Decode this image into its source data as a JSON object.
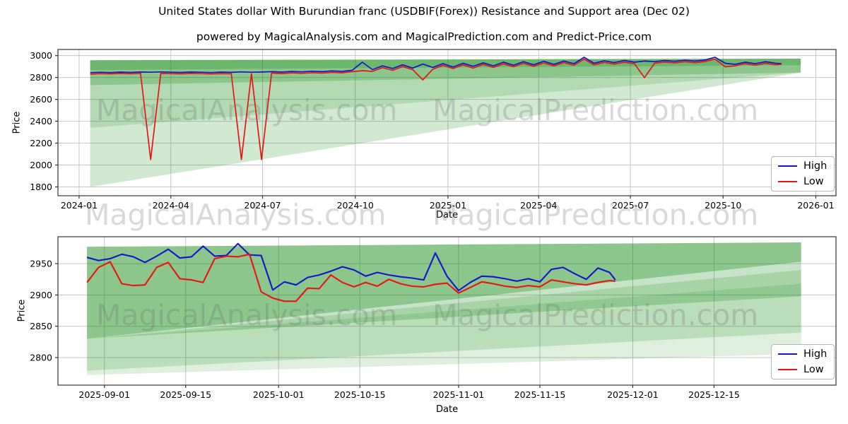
{
  "title": "United States dollar With Burundian franc (USDBIF(Forex)) Resistance and Support area (Dec 02)",
  "subtitle": "powered by MagicalAnalysis.com and MagicalPrediction.com and Predict-Price.com",
  "watermark": {
    "left": "MagicalAnalysis.com",
    "right": "MagicalPrediction.com"
  },
  "legend": {
    "high": "High",
    "low": "Low"
  },
  "colors": {
    "high": "#1414cc",
    "low": "#e81414",
    "band": "#008000",
    "grid": "#c6c6c6",
    "spine": "#333333",
    "tick_text": "#000000"
  },
  "chart_data": [
    {
      "type": "line",
      "name": "full-history",
      "xlabel": "Date",
      "ylabel": "Price",
      "x_domain": [
        "2023-12-11",
        "2026-01-21"
      ],
      "y_domain": [
        1719,
        3056
      ],
      "x_ticks": [
        {
          "label": "2024-01",
          "date": "2024-01-01"
        },
        {
          "label": "2024-04",
          "date": "2024-04-01"
        },
        {
          "label": "2024-07",
          "date": "2024-07-01"
        },
        {
          "label": "2024-10",
          "date": "2024-10-01"
        },
        {
          "label": "2025-01",
          "date": "2025-01-01"
        },
        {
          "label": "2025-04",
          "date": "2025-04-01"
        },
        {
          "label": "2025-07",
          "date": "2025-07-01"
        },
        {
          "label": "2025-10",
          "date": "2025-10-01"
        },
        {
          "label": "2026-01",
          "date": "2026-01-01"
        }
      ],
      "y_ticks": [
        1800,
        2000,
        2200,
        2400,
        2600,
        2800,
        3000
      ],
      "grid": true,
      "legend_position": "lower right",
      "dates": [
        "2024-01-12",
        "2024-01-22",
        "2024-02-01",
        "2024-02-11",
        "2024-02-21",
        "2024-03-02",
        "2024-03-12",
        "2024-03-22",
        "2024-04-01",
        "2024-04-11",
        "2024-04-21",
        "2024-05-01",
        "2024-05-11",
        "2024-05-21",
        "2024-05-31",
        "2024-06-10",
        "2024-06-20",
        "2024-06-30",
        "2024-07-10",
        "2024-07-20",
        "2024-07-30",
        "2024-08-09",
        "2024-08-19",
        "2024-08-29",
        "2024-09-08",
        "2024-09-18",
        "2024-09-28",
        "2024-10-08",
        "2024-10-18",
        "2024-10-28",
        "2024-11-07",
        "2024-11-17",
        "2024-11-27",
        "2024-12-07",
        "2024-12-17",
        "2024-12-27",
        "2025-01-06",
        "2025-01-16",
        "2025-01-26",
        "2025-02-05",
        "2025-02-15",
        "2025-02-25",
        "2025-03-07",
        "2025-03-17",
        "2025-03-27",
        "2025-04-06",
        "2025-04-16",
        "2025-04-26",
        "2025-05-06",
        "2025-05-16",
        "2025-05-26",
        "2025-06-05",
        "2025-06-15",
        "2025-06-25",
        "2025-07-05",
        "2025-07-15",
        "2025-07-25",
        "2025-08-04",
        "2025-08-14",
        "2025-08-24",
        "2025-09-03",
        "2025-09-13",
        "2025-09-23",
        "2025-10-03",
        "2025-10-13",
        "2025-10-23",
        "2025-11-02",
        "2025-11-12",
        "2025-11-22",
        "2025-11-28"
      ],
      "series": [
        {
          "name": "High",
          "color_key": "high",
          "values": [
            2844,
            2848,
            2845,
            2849,
            2846,
            2850,
            2848,
            2851,
            2848,
            2846,
            2850,
            2848,
            2845,
            2849,
            2847,
            2851,
            2848,
            2850,
            2853,
            2849,
            2855,
            2851,
            2857,
            2853,
            2860,
            2856,
            2866,
            2940,
            2872,
            2906,
            2882,
            2916,
            2886,
            2922,
            2892,
            2926,
            2896,
            2930,
            2902,
            2934,
            2906,
            2940,
            2912,
            2944,
            2916,
            2948,
            2920,
            2950,
            2926,
            2985,
            2930,
            2952,
            2936,
            2955,
            2940,
            2950,
            2944,
            2955,
            2948,
            2958,
            2950,
            2960,
            2985,
            2930,
            2920,
            2940,
            2926,
            2944,
            2930,
            2926
          ]
        },
        {
          "name": "Low",
          "color_key": "low",
          "values": [
            2830,
            2836,
            2833,
            2837,
            2834,
            2838,
            2050,
            2837,
            2835,
            2833,
            2837,
            2835,
            2832,
            2836,
            2834,
            2050,
            2836,
            2050,
            2840,
            2836,
            2842,
            2838,
            2844,
            2840,
            2847,
            2843,
            2853,
            2862,
            2856,
            2890,
            2866,
            2900,
            2872,
            2778,
            2876,
            2910,
            2882,
            2915,
            2886,
            2920,
            2892,
            2925,
            2898,
            2930,
            2902,
            2933,
            2906,
            2936,
            2912,
            2968,
            2916,
            2938,
            2922,
            2940,
            2926,
            2798,
            2930,
            2941,
            2934,
            2944,
            2936,
            2946,
            2968,
            2898,
            2906,
            2926,
            2912,
            2930,
            2916,
            2921
          ]
        }
      ],
      "bands": [
        {
          "opacity": 0.18,
          "points": [
            [
              "2024-01-12",
              2340
            ],
            [
              "2024-01-12",
              1800
            ],
            [
              "2025-12-17",
              2845
            ]
          ]
        },
        {
          "opacity": 0.3,
          "points": [
            [
              "2024-01-12",
              2730
            ],
            [
              "2024-01-12",
              2340
            ],
            [
              "2025-12-17",
              2845
            ]
          ]
        },
        {
          "opacity": 0.45,
          "points": [
            [
              "2024-01-12",
              2958
            ],
            [
              "2025-12-17",
              2972
            ],
            [
              "2025-12-17",
              2845
            ],
            [
              "2024-01-12",
              2730
            ]
          ]
        },
        {
          "opacity": 0.22,
          "points": [
            [
              "2024-01-12",
              2958
            ],
            [
              "2025-12-17",
              2972
            ],
            [
              "2025-12-17",
              2912
            ],
            [
              "2024-01-12",
              2868
            ]
          ]
        }
      ]
    },
    {
      "type": "line",
      "name": "recent-zoom",
      "xlabel": "Date",
      "ylabel": "Price",
      "x_domain": [
        "2025-08-24",
        "2026-01-05"
      ],
      "y_domain": [
        2756,
        2993
      ],
      "x_ticks": [
        {
          "label": "2025-09-01",
          "date": "2025-09-01"
        },
        {
          "label": "2025-09-15",
          "date": "2025-09-15"
        },
        {
          "label": "2025-10-01",
          "date": "2025-10-01"
        },
        {
          "label": "2025-10-15",
          "date": "2025-10-15"
        },
        {
          "label": "2025-11-01",
          "date": "2025-11-01"
        },
        {
          "label": "2025-11-15",
          "date": "2025-11-15"
        },
        {
          "label": "2025-12-01",
          "date": "2025-12-01"
        },
        {
          "label": "2025-12-15",
          "date": "2025-12-15"
        }
      ],
      "y_ticks": [
        2800,
        2850,
        2900,
        2950
      ],
      "grid": true,
      "legend_position": "lower right",
      "dates": [
        "2025-08-29",
        "2025-08-31",
        "2025-09-02",
        "2025-09-04",
        "2025-09-06",
        "2025-09-08",
        "2025-09-10",
        "2025-09-12",
        "2025-09-14",
        "2025-09-16",
        "2025-09-18",
        "2025-09-20",
        "2025-09-22",
        "2025-09-24",
        "2025-09-26",
        "2025-09-28",
        "2025-09-30",
        "2025-10-02",
        "2025-10-04",
        "2025-10-06",
        "2025-10-08",
        "2025-10-10",
        "2025-10-12",
        "2025-10-14",
        "2025-10-16",
        "2025-10-18",
        "2025-10-20",
        "2025-10-22",
        "2025-10-24",
        "2025-10-26",
        "2025-10-28",
        "2025-10-30",
        "2025-11-01",
        "2025-11-03",
        "2025-11-05",
        "2025-11-07",
        "2025-11-09",
        "2025-11-11",
        "2025-11-13",
        "2025-11-15",
        "2025-11-17",
        "2025-11-19",
        "2025-11-21",
        "2025-11-23",
        "2025-11-25",
        "2025-11-27",
        "2025-11-28"
      ],
      "series": [
        {
          "name": "High",
          "color_key": "high",
          "values": [
            2960,
            2955,
            2958,
            2965,
            2961,
            2952,
            2962,
            2973,
            2959,
            2961,
            2978,
            2962,
            2963,
            2982,
            2964,
            2963,
            2908,
            2921,
            2916,
            2928,
            2932,
            2938,
            2945,
            2940,
            2930,
            2936,
            2932,
            2929,
            2927,
            2924,
            2967,
            2930,
            2907,
            2920,
            2930,
            2929,
            2926,
            2922,
            2926,
            2921,
            2941,
            2944,
            2934,
            2925,
            2943,
            2936,
            2924
          ]
        },
        {
          "name": "Low",
          "color_key": "low",
          "values": [
            2920,
            2944,
            2953,
            2918,
            2915,
            2916,
            2944,
            2952,
            2926,
            2924,
            2920,
            2958,
            2962,
            2961,
            2965,
            2905,
            2895,
            2890,
            2890,
            2911,
            2910,
            2932,
            2920,
            2913,
            2920,
            2914,
            2925,
            2918,
            2914,
            2913,
            2917,
            2919,
            2903,
            2912,
            2921,
            2918,
            2914,
            2912,
            2915,
            2913,
            2924,
            2921,
            2918,
            2916,
            2920,
            2923,
            2922
          ]
        }
      ],
      "bands": [
        {
          "opacity": 0.13,
          "points": [
            [
              "2025-08-29",
              2830
            ],
            [
              "2025-12-30",
              2918
            ],
            [
              "2025-12-30",
              2806
            ],
            [
              "2025-08-29",
              2772
            ]
          ]
        },
        {
          "opacity": 0.16,
          "points": [
            [
              "2025-08-29",
              2830
            ],
            [
              "2025-12-30",
              2940
            ],
            [
              "2025-12-30",
              2840
            ],
            [
              "2025-08-29",
              2779
            ]
          ]
        },
        {
          "opacity": 0.22,
          "points": [
            [
              "2025-08-29",
              2830
            ],
            [
              "2025-12-30",
              2953
            ],
            [
              "2025-12-30",
              2898
            ]
          ]
        },
        {
          "opacity": 0.45,
          "points": [
            [
              "2025-08-29",
              2977
            ],
            [
              "2025-12-30",
              2984
            ],
            [
              "2025-12-30",
              2953
            ],
            [
              "2025-08-29",
              2830
            ]
          ]
        }
      ]
    }
  ]
}
